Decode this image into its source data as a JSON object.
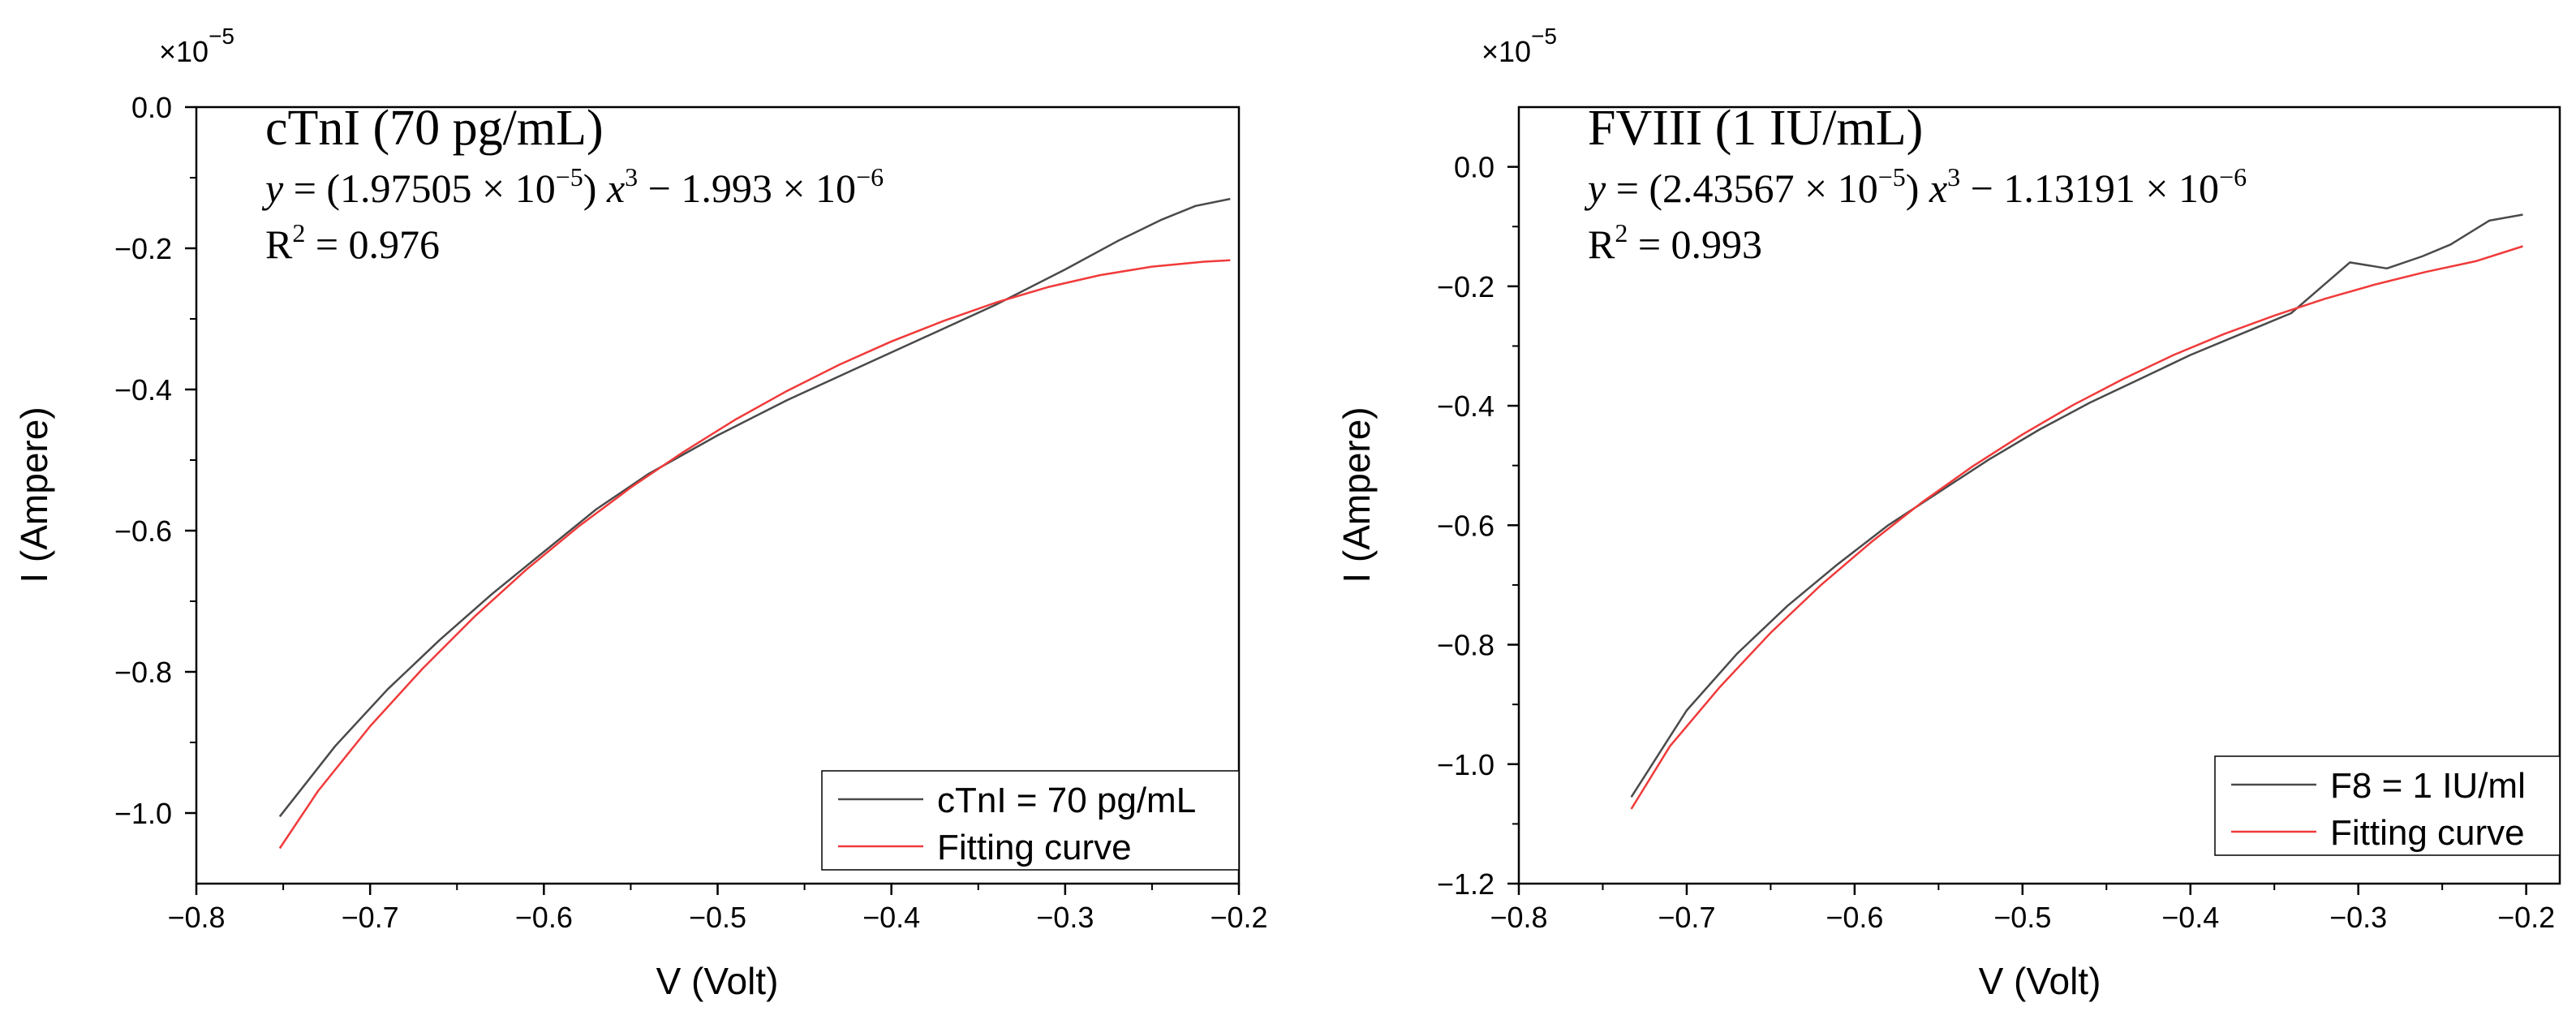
{
  "chart_data": [
    {
      "type": "line",
      "title": "cTnI (70 pg/mL)",
      "exponent_label": "×10",
      "exponent_power": "−5",
      "xlabel": "V (Volt)",
      "ylabel": "I (Ampere)",
      "xlim": [
        -0.8,
        -0.2
      ],
      "ylim": [
        -1.1,
        0.0
      ],
      "xticks": [
        -0.8,
        -0.7,
        -0.6,
        -0.5,
        -0.4,
        -0.3,
        -0.2
      ],
      "xtick_labels": [
        "−0.8",
        "−0.7",
        "−0.6",
        "−0.5",
        "−0.4",
        "−0.3",
        "−0.2"
      ],
      "yticks": [
        0.0,
        -0.2,
        -0.4,
        -0.6,
        -0.8,
        -1.0
      ],
      "ytick_labels": [
        "0.0",
        "−0.2",
        "−0.4",
        "−0.6",
        "−0.8",
        "−1.0"
      ],
      "equation": {
        "lead": "y",
        "eq": " = (1.97505 × 10",
        "exp1": "−5",
        "mid": ") ",
        "var": "x",
        "exp2": "3",
        "tail": " − 1.993 × 10",
        "exp3": "−6"
      },
      "r2": {
        "label": "R",
        "sup": "2",
        "value": " = 0.976"
      },
      "series": [
        {
          "name": "cTnI = 70 pg/mL",
          "color": "#4a4a4a",
          "x": [
            -0.752,
            -0.72,
            -0.69,
            -0.66,
            -0.63,
            -0.6,
            -0.57,
            -0.54,
            -0.5,
            -0.46,
            -0.42,
            -0.38,
            -0.34,
            -0.3,
            -0.27,
            -0.245,
            -0.225,
            -0.205
          ],
          "y": [
            -1.005,
            -0.905,
            -0.825,
            -0.755,
            -0.69,
            -0.63,
            -0.57,
            -0.52,
            -0.465,
            -0.415,
            -0.37,
            -0.325,
            -0.28,
            -0.23,
            -0.19,
            -0.16,
            -0.14,
            -0.13
          ]
        },
        {
          "name": "Fitting curve",
          "color": "#f03a3a",
          "x": [
            -0.752,
            -0.73,
            -0.7,
            -0.67,
            -0.64,
            -0.61,
            -0.58,
            -0.55,
            -0.52,
            -0.49,
            -0.46,
            -0.43,
            -0.4,
            -0.37,
            -0.34,
            -0.31,
            -0.28,
            -0.25,
            -0.22,
            -0.205
          ],
          "y": [
            -1.05,
            -0.969,
            -0.877,
            -0.796,
            -0.722,
            -0.655,
            -0.594,
            -0.539,
            -0.489,
            -0.443,
            -0.402,
            -0.365,
            -0.332,
            -0.303,
            -0.277,
            -0.255,
            -0.238,
            -0.226,
            -0.219,
            -0.217
          ]
        }
      ],
      "legend_position": "bottom-right"
    },
    {
      "type": "line",
      "title": "FVIII (1 IU/mL)",
      "exponent_label": "×10",
      "exponent_power": "−5",
      "xlabel": "V (Volt)",
      "ylabel": "I (Ampere)",
      "xlim": [
        -0.8,
        -0.18
      ],
      "ylim": [
        -1.2,
        0.1
      ],
      "xticks": [
        -0.8,
        -0.7,
        -0.6,
        -0.5,
        -0.4,
        -0.3,
        -0.2
      ],
      "xtick_labels": [
        "−0.8",
        "−0.7",
        "−0.6",
        "−0.5",
        "−0.4",
        "−0.3",
        "−0.2"
      ],
      "yticks": [
        0.0,
        -0.2,
        -0.4,
        -0.6,
        -0.8,
        -1.0,
        -1.2
      ],
      "ytick_labels": [
        "0.0",
        "−0.2",
        "−0.4",
        "−0.6",
        "−0.8",
        "−1.0",
        "−1.2"
      ],
      "equation": {
        "lead": "y",
        "eq": " = (2.43567 × 10",
        "exp1": "−5",
        "mid": ") ",
        "var": "x",
        "exp2": "3",
        "tail": " − 1.13191 × 10",
        "exp3": "−6"
      },
      "r2": {
        "label": "R",
        "sup": "2",
        "value": " = 0.993"
      },
      "series": [
        {
          "name": "F8 = 1 IU/ml",
          "color": "#4a4a4a",
          "x": [
            -0.733,
            -0.7,
            -0.67,
            -0.64,
            -0.61,
            -0.58,
            -0.55,
            -0.52,
            -0.49,
            -0.46,
            -0.43,
            -0.4,
            -0.37,
            -0.34,
            -0.305,
            -0.283,
            -0.262,
            -0.245,
            -0.222,
            -0.202
          ],
          "y": [
            -1.055,
            -0.91,
            -0.815,
            -0.735,
            -0.665,
            -0.6,
            -0.545,
            -0.49,
            -0.44,
            -0.395,
            -0.355,
            -0.315,
            -0.28,
            -0.245,
            -0.16,
            -0.17,
            -0.15,
            -0.13,
            -0.09,
            -0.08
          ]
        },
        {
          "name": "Fitting curve",
          "color": "#f03a3a",
          "x": [
            -0.733,
            -0.71,
            -0.68,
            -0.65,
            -0.62,
            -0.59,
            -0.56,
            -0.53,
            -0.5,
            -0.47,
            -0.44,
            -0.41,
            -0.38,
            -0.35,
            -0.32,
            -0.29,
            -0.26,
            -0.23,
            -0.202
          ],
          "y": [
            -1.075,
            -0.97,
            -0.87,
            -0.78,
            -0.7,
            -0.628,
            -0.562,
            -0.502,
            -0.448,
            -0.399,
            -0.355,
            -0.315,
            -0.28,
            -0.249,
            -0.221,
            -0.197,
            -0.176,
            -0.158,
            -0.133
          ]
        }
      ],
      "legend_position": "bottom-right"
    }
  ]
}
